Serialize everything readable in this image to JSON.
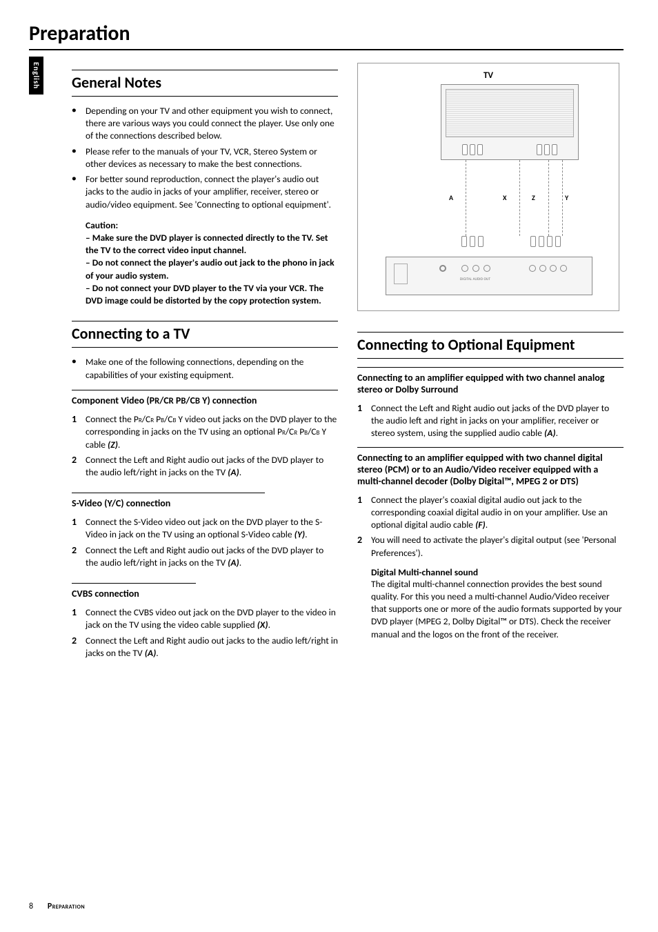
{
  "language_tab": "English",
  "page_title": "Preparation",
  "footer": {
    "page_number": "8",
    "section": "Preparation"
  },
  "general": {
    "heading": "General Notes",
    "bullets": [
      "Depending on your TV and other equipment you wish to connect, there are various ways you could connect the player. Use only one of the connections described below.",
      "Please refer to the manuals of your TV, VCR, Stereo System or other devices as necessary to make the best connections.",
      "For better sound reproduction, connect the player's audio out jacks to the audio in jacks of your amplifier, receiver, stereo or audio/video equipment. See 'Connecting to optional equipment'."
    ],
    "caution_label": "Caution:",
    "caution_lines": [
      "– Make sure the DVD player is connected directly to the TV. Set the TV to the correct video input channel.",
      "– Do not connect  the player's audio out jack to the phono in jack of your audio system.",
      "– Do not connect your DVD player to the TV via your VCR. The DVD image could be distorted by the copy protection system."
    ]
  },
  "connect_tv": {
    "heading": "Connecting to a TV",
    "intro": "Make one of the following connections, depending on the capabilities of your existing equipment.",
    "component": {
      "heading_pre": "Component Video (P",
      "heading_r1": "R",
      "heading_mid1": "/C",
      "heading_r2": "R",
      "heading_mid2": " P",
      "heading_b1": "B",
      "heading_mid3": "/C",
      "heading_b2": "B",
      "heading_post": " Y) connection",
      "step1_pre": "Connect the P",
      "step1_mid": " Y video out jacks on the DVD player to the corresponding in jacks on the TV using an optional P",
      "step1_post": " Y cable ",
      "step1_ref": "(Z)",
      "step1_end": ".",
      "step2": "Connect the Left and Right audio out jacks of the DVD player to the audio left/right in jacks on the TV ",
      "step2_ref": "(A)",
      "step2_end": "."
    },
    "svideo": {
      "heading": "S-Video (Y/C) connection",
      "step1": "Connect the S-Video video out jack on the DVD player to the S-Video in jack on the TV using an optional S-Video cable ",
      "step1_ref": "(Y)",
      "step1_end": ".",
      "step2": "Connect the Left and Right audio out jacks of the DVD player to the audio left/right in jacks on the TV ",
      "step2_ref": "(A)",
      "step2_end": "."
    },
    "cvbs": {
      "heading": "CVBS connection",
      "step1": "Connect the CVBS video out jack on the DVD player to the video in jack on the TV using the video cable supplied ",
      "step1_ref": "(X)",
      "step1_end": ".",
      "step2": "Connect the Left and Right audio out jacks to the audio left/right in jacks on the TV ",
      "step2_ref": "(A)",
      "step2_end": "."
    }
  },
  "diagram": {
    "tv_label": "TV",
    "cable_labels": {
      "A": "A",
      "X": "X",
      "Z": "Z",
      "Y": "Y"
    },
    "rear_text": "DIGITAL AUDIO OUT",
    "colors": {
      "border": "#999999",
      "fill": "#f5f5f5",
      "line": "#888888"
    }
  },
  "optional": {
    "heading": "Connecting to Optional Equipment",
    "analog": {
      "heading": "Connecting to an amplifier equipped with two channel analog stereo or Dolby Surround",
      "step1": "Connect the Left and Right audio out jacks of the DVD player to the audio left and right in jacks on your amplifier, receiver or stereo system, using the supplied audio cable ",
      "step1_ref": "(A)",
      "step1_end": "."
    },
    "digital": {
      "heading": "Connecting to an amplifier equipped with two channel digital stereo (PCM) or to an Audio/Video receiver equipped with a multi-channel decoder (Dolby Digital™, MPEG 2 or DTS)",
      "step1": "Connect the player's coaxial digital audio out jack to the corresponding coaxial digital audio in on your amplifier. Use an optional digital audio cable ",
      "step1_ref": "(F)",
      "step1_end": ".",
      "step2": "You will need to activate the player's digital output (see 'Personal Preferences').",
      "multi_title": "Digital Multi-channel sound",
      "multi_body": "The digital multi-channel connection provides the best sound quality. For this you need a multi-channel Audio/Video receiver that supports one or more of the audio formats supported by your DVD player (MPEG 2, Dolby Digital™ or DTS). Check the receiver manual and the logos on the front of the receiver."
    }
  }
}
